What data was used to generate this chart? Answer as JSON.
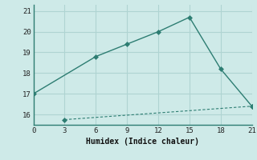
{
  "xlabel": "Humidex (Indice chaleur)",
  "background_color": "#ceeae8",
  "grid_color": "#afd4d2",
  "line_color": "#2d7d72",
  "xlim": [
    0,
    21
  ],
  "ylim": [
    15.5,
    21.3
  ],
  "xticks": [
    0,
    3,
    6,
    9,
    12,
    15,
    18,
    21
  ],
  "yticks": [
    16,
    17,
    18,
    19,
    20,
    21
  ],
  "line1_x": [
    0,
    6,
    9,
    12,
    15,
    18,
    21
  ],
  "line1_y": [
    17.0,
    18.8,
    19.4,
    20.0,
    20.7,
    18.2,
    16.4
  ],
  "line2_x": [
    3,
    21
  ],
  "line2_y": [
    15.75,
    16.4
  ]
}
